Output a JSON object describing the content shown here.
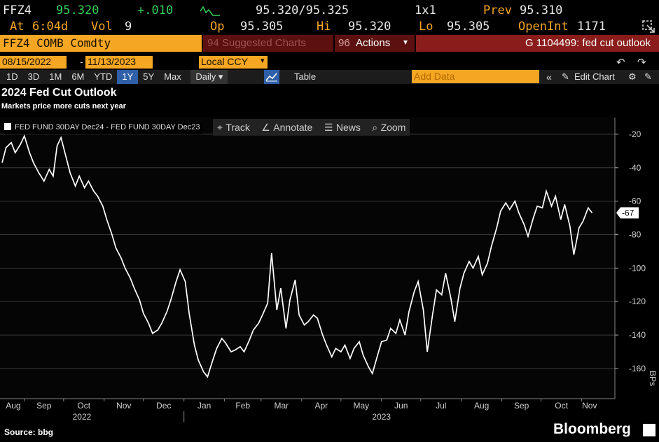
{
  "quote": {
    "ticker": "FFZ4",
    "price": "95.320",
    "change": "+.010",
    "bid_ask": "95.320/95.325",
    "size": "1x1",
    "prev_label": "Prev",
    "prev": "95.310",
    "at_label": "At",
    "time": "6:04d",
    "vol_label": "Vol",
    "vol": "9",
    "op_label": "Op",
    "op": "95.305",
    "hi_label": "Hi",
    "hi": "95.320",
    "lo_label": "Lo",
    "lo": "95.305",
    "oi_label": "OpenInt",
    "oi": "1171"
  },
  "command_bar": {
    "security": "FFZ4 COMB Comdty",
    "suggested": "94 Suggested Charts",
    "actions_num": "96",
    "actions": "Actions",
    "chart_id": "G 1104499: fed cut outlook"
  },
  "range": {
    "start": "08/15/2022",
    "separator": "-",
    "end": "11/13/2023",
    "currency": "Local CCY"
  },
  "toolbar": {
    "periods": [
      "1D",
      "3D",
      "1M",
      "6M",
      "YTD",
      "1Y",
      "5Y",
      "Max"
    ],
    "active_period": "1Y",
    "frequency": "Daily",
    "table": "Table",
    "add_data": "Add Data",
    "edit_chart": "Edit Chart"
  },
  "tools": {
    "track": "Track",
    "annotate": "Annotate",
    "news": "News",
    "zoom": "Zoom"
  },
  "footer": {
    "source": "Source: bbg",
    "brand": "Bloomberg"
  },
  "colors": {
    "accent_orange": "#f5a623",
    "command_red": "#8b1c1c",
    "positive_green": "#34d058",
    "line": "#ffffff"
  },
  "icons": [
    "squiggle-icon",
    "export-icon",
    "undo-icon",
    "redo-icon",
    "chevrons-left-icon",
    "pencil-icon",
    "chart-line-icon",
    "crosshair-icon",
    "annotate-icon",
    "news-icon",
    "zoom-icon",
    "settings-icon"
  ],
  "chart_data": {
    "type": "line",
    "title": "2024 Fed Cut Outlook",
    "subtitle": "Markets price more cuts next year",
    "legend": [
      "FED FUND 30DAY Dec24 - FED FUND 30DAY Dec23"
    ],
    "ylabel": "BPs",
    "yticks": [
      -20,
      -40,
      -60,
      -80,
      -100,
      -120,
      -140,
      -160
    ],
    "ylim": [
      -178,
      -10
    ],
    "last_value_label": "-67",
    "grid": true,
    "legend_position": "top-left",
    "x_ticks": [
      "Aug",
      "Sep",
      "Oct",
      "Nov",
      "Dec",
      "Jan",
      "Feb",
      "Mar",
      "Apr",
      "May",
      "Jun",
      "Jul",
      "Aug",
      "Sep",
      "Oct",
      "Nov"
    ],
    "x_years": [
      "2022",
      "2023"
    ],
    "x_range": [
      "2022-08-15",
      "2023-11-13"
    ],
    "series": [
      {
        "name": "FED FUND 30DAY Dec24 - FED FUND 30DAY Dec23",
        "points": [
          [
            "2022-08-15",
            -37
          ],
          [
            "2022-08-18",
            -28
          ],
          [
            "2022-08-22",
            -25
          ],
          [
            "2022-08-25",
            -31
          ],
          [
            "2022-08-29",
            -26
          ],
          [
            "2022-09-01",
            -21
          ],
          [
            "2022-09-05",
            -31
          ],
          [
            "2022-09-08",
            -37
          ],
          [
            "2022-09-12",
            -43
          ],
          [
            "2022-09-16",
            -48
          ],
          [
            "2022-09-20",
            -41
          ],
          [
            "2022-09-23",
            -45
          ],
          [
            "2022-09-26",
            -27
          ],
          [
            "2022-09-29",
            -22
          ],
          [
            "2022-10-03",
            -34
          ],
          [
            "2022-10-06",
            -43
          ],
          [
            "2022-10-10",
            -51
          ],
          [
            "2022-10-13",
            -45
          ],
          [
            "2022-10-17",
            -52
          ],
          [
            "2022-10-20",
            -48
          ],
          [
            "2022-10-24",
            -54
          ],
          [
            "2022-10-27",
            -57
          ],
          [
            "2022-10-31",
            -63
          ],
          [
            "2022-11-03",
            -71
          ],
          [
            "2022-11-07",
            -80
          ],
          [
            "2022-11-10",
            -88
          ],
          [
            "2022-11-14",
            -94
          ],
          [
            "2022-11-17",
            -100
          ],
          [
            "2022-11-21",
            -106
          ],
          [
            "2022-11-24",
            -112
          ],
          [
            "2022-11-28",
            -119
          ],
          [
            "2022-12-01",
            -127
          ],
          [
            "2022-12-05",
            -133
          ],
          [
            "2022-12-08",
            -139
          ],
          [
            "2022-12-12",
            -137
          ],
          [
            "2022-12-15",
            -133
          ],
          [
            "2022-12-19",
            -126
          ],
          [
            "2022-12-22",
            -119
          ],
          [
            "2022-12-26",
            -108
          ],
          [
            "2022-12-29",
            -101
          ],
          [
            "2023-01-02",
            -108
          ],
          [
            "2023-01-05",
            -127
          ],
          [
            "2023-01-09",
            -146
          ],
          [
            "2023-01-12",
            -155
          ],
          [
            "2023-01-16",
            -162
          ],
          [
            "2023-01-19",
            -165
          ],
          [
            "2023-01-23",
            -155
          ],
          [
            "2023-01-26",
            -148
          ],
          [
            "2023-01-30",
            -142
          ],
          [
            "2023-02-02",
            -145
          ],
          [
            "2023-02-06",
            -150
          ],
          [
            "2023-02-09",
            -149
          ],
          [
            "2023-02-13",
            -147
          ],
          [
            "2023-02-16",
            -150
          ],
          [
            "2023-02-20",
            -143
          ],
          [
            "2023-02-23",
            -137
          ],
          [
            "2023-02-27",
            -133
          ],
          [
            "2023-03-02",
            -128
          ],
          [
            "2023-03-06",
            -121
          ],
          [
            "2023-03-09",
            -91
          ],
          [
            "2023-03-13",
            -125
          ],
          [
            "2023-03-16",
            -112
          ],
          [
            "2023-03-20",
            -136
          ],
          [
            "2023-03-23",
            -119
          ],
          [
            "2023-03-27",
            -107
          ],
          [
            "2023-03-30",
            -128
          ],
          [
            "2023-04-03",
            -134
          ],
          [
            "2023-04-06",
            -132
          ],
          [
            "2023-04-10",
            -128
          ],
          [
            "2023-04-13",
            -130
          ],
          [
            "2023-04-17",
            -140
          ],
          [
            "2023-04-20",
            -146
          ],
          [
            "2023-04-24",
            -153
          ],
          [
            "2023-04-27",
            -148
          ],
          [
            "2023-05-01",
            -150
          ],
          [
            "2023-05-04",
            -146
          ],
          [
            "2023-05-08",
            -154
          ],
          [
            "2023-05-11",
            -148
          ],
          [
            "2023-05-15",
            -144
          ],
          [
            "2023-05-18",
            -152
          ],
          [
            "2023-05-22",
            -159
          ],
          [
            "2023-05-25",
            -163
          ],
          [
            "2023-05-29",
            -152
          ],
          [
            "2023-06-01",
            -144
          ],
          [
            "2023-06-05",
            -143
          ],
          [
            "2023-06-08",
            -136
          ],
          [
            "2023-06-12",
            -139
          ],
          [
            "2023-06-15",
            -131
          ],
          [
            "2023-06-19",
            -140
          ],
          [
            "2023-06-22",
            -126
          ],
          [
            "2023-06-26",
            -114
          ],
          [
            "2023-06-29",
            -108
          ],
          [
            "2023-07-03",
            -125
          ],
          [
            "2023-07-06",
            -150
          ],
          [
            "2023-07-10",
            -128
          ],
          [
            "2023-07-13",
            -113
          ],
          [
            "2023-07-17",
            -116
          ],
          [
            "2023-07-20",
            -103
          ],
          [
            "2023-07-24",
            -118
          ],
          [
            "2023-07-27",
            -132
          ],
          [
            "2023-07-31",
            -112
          ],
          [
            "2023-08-03",
            -103
          ],
          [
            "2023-08-07",
            -96
          ],
          [
            "2023-08-10",
            -100
          ],
          [
            "2023-08-14",
            -93
          ],
          [
            "2023-08-17",
            -104
          ],
          [
            "2023-08-21",
            -97
          ],
          [
            "2023-08-24",
            -87
          ],
          [
            "2023-08-28",
            -76
          ],
          [
            "2023-08-31",
            -66
          ],
          [
            "2023-09-04",
            -61
          ],
          [
            "2023-09-07",
            -65
          ],
          [
            "2023-09-11",
            -60
          ],
          [
            "2023-09-14",
            -67
          ],
          [
            "2023-09-18",
            -74
          ],
          [
            "2023-09-21",
            -81
          ],
          [
            "2023-09-25",
            -70
          ],
          [
            "2023-09-28",
            -63
          ],
          [
            "2023-10-02",
            -64
          ],
          [
            "2023-10-05",
            -54
          ],
          [
            "2023-10-09",
            -63
          ],
          [
            "2023-10-12",
            -57
          ],
          [
            "2023-10-16",
            -71
          ],
          [
            "2023-10-19",
            -62
          ],
          [
            "2023-10-23",
            -75
          ],
          [
            "2023-10-26",
            -92
          ],
          [
            "2023-10-30",
            -76
          ],
          [
            "2023-11-02",
            -72
          ],
          [
            "2023-11-06",
            -64
          ],
          [
            "2023-11-09",
            -67
          ]
        ]
      }
    ]
  }
}
